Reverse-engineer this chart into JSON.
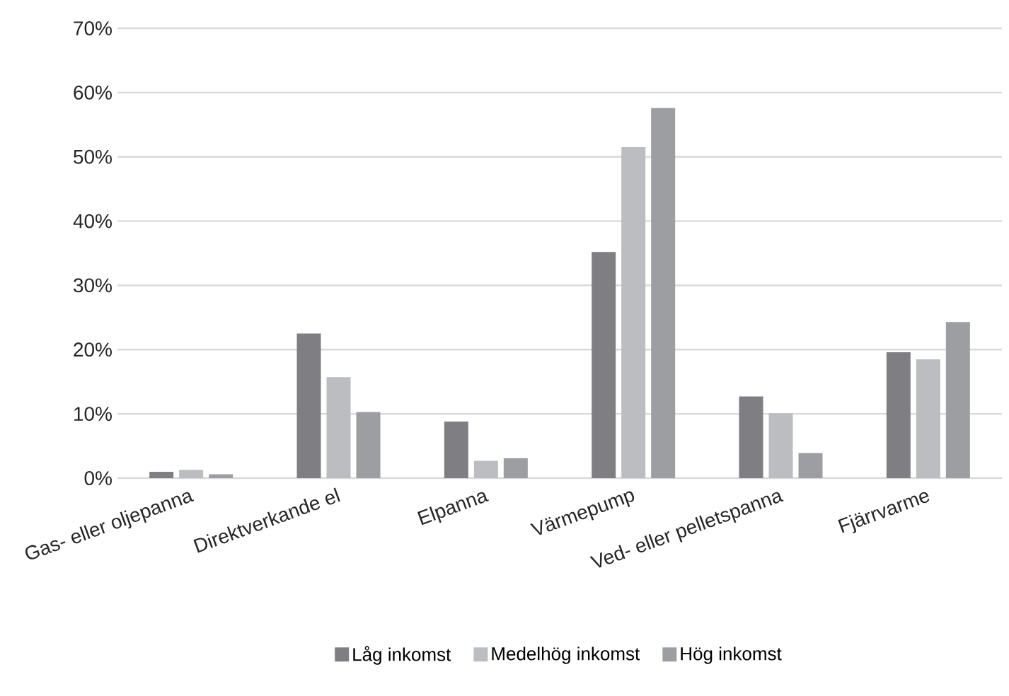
{
  "chart_data": {
    "type": "bar",
    "categories": [
      "Gas- eller oljepanna",
      "Direktverkande el",
      "Elpanna",
      "Värmepump",
      "Ved- eller pelletspanna",
      "Fjärrvarme"
    ],
    "series": [
      {
        "name": "Låg inkomst",
        "color": "#7f7f83",
        "values": [
          1.0,
          22.5,
          8.8,
          35.2,
          12.7,
          19.6
        ]
      },
      {
        "name": "Medelhög inkomst",
        "color": "#bcbdc0",
        "values": [
          1.3,
          15.7,
          2.7,
          51.5,
          10.1,
          18.5
        ]
      },
      {
        "name": "Hög inkomst",
        "color": "#9d9ea2",
        "values": [
          0.6,
          10.3,
          3.1,
          57.6,
          3.9,
          24.3
        ]
      }
    ],
    "ylim": [
      0,
      70
    ],
    "yticks": [
      {
        "value": 0,
        "label": "0%"
      },
      {
        "value": 10,
        "label": "10%"
      },
      {
        "value": 20,
        "label": "20%"
      },
      {
        "value": 30,
        "label": "30%"
      },
      {
        "value": 40,
        "label": "40%"
      },
      {
        "value": 50,
        "label": "50%"
      },
      {
        "value": 60,
        "label": "60%"
      },
      {
        "value": 70,
        "label": "70%"
      }
    ],
    "grid": "y",
    "legend": "bottom"
  }
}
